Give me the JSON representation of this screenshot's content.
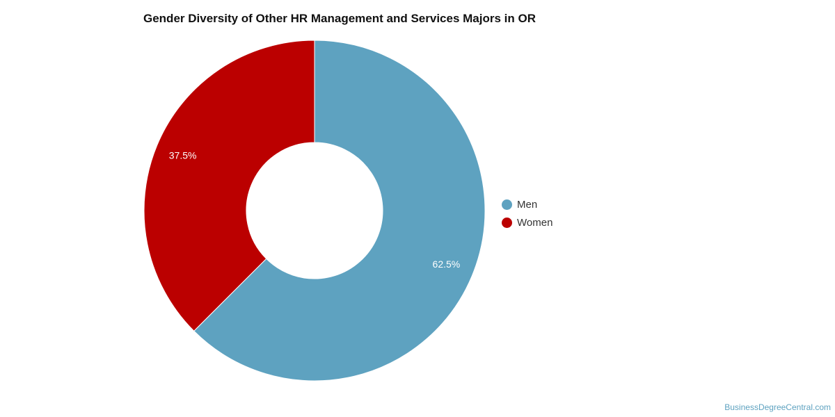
{
  "chart_data": {
    "type": "pie",
    "title": "Gender Diversity of Other HR Management and Services Majors in OR",
    "donut": true,
    "legend_position": "right",
    "slices": [
      {
        "name": "Men",
        "value": 62.5,
        "label": "62.5%",
        "color": "#5ea2c0"
      },
      {
        "name": "Women",
        "value": 37.5,
        "label": "37.5%",
        "color": "#bb0000"
      }
    ]
  },
  "watermark": "BusinessDegreeCentral.com"
}
